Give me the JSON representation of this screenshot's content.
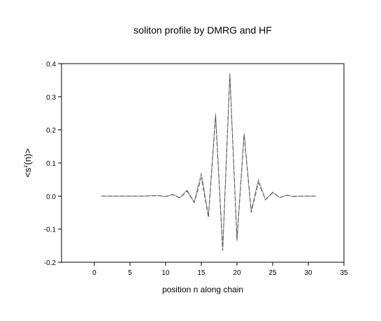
{
  "chart_data": {
    "type": "line",
    "title": "soliton profile by DMRG and HF",
    "xlabel": "position n along chain",
    "ylabel": {
      "base": "<s",
      "sup": "z",
      "rest": "(n)>"
    },
    "x": [
      1,
      2,
      3,
      4,
      5,
      6,
      7,
      8,
      9,
      10,
      11,
      12,
      13,
      14,
      15,
      16,
      17,
      18,
      19,
      20,
      21,
      22,
      23,
      24,
      25,
      26,
      27,
      28,
      29,
      30,
      31
    ],
    "series": [
      {
        "color": "#888888",
        "dash": false,
        "values": [
          0,
          0,
          0,
          0,
          0,
          0,
          0,
          0.001,
          0.002,
          -0.002,
          0.005,
          -0.005,
          0.018,
          -0.018,
          0.07,
          -0.06,
          0.25,
          -0.16,
          0.365,
          -0.13,
          0.19,
          -0.045,
          0.05,
          -0.012,
          0.012,
          -0.005,
          0.003,
          -0.002,
          0,
          0,
          0
        ]
      },
      {
        "color": "#555555",
        "dash": true,
        "values": [
          0,
          0,
          0,
          0,
          0,
          0,
          0,
          0.001,
          0.001,
          -0.001,
          0.004,
          -0.006,
          0.015,
          -0.02,
          0.055,
          -0.065,
          0.24,
          -0.165,
          0.37,
          -0.135,
          0.185,
          -0.05,
          0.04,
          -0.01,
          0.01,
          -0.004,
          0.002,
          -0.001,
          0,
          0,
          0
        ]
      }
    ],
    "xlim": [
      -4.6,
      35
    ],
    "xticks": [
      0,
      5,
      10,
      15,
      20,
      25,
      30,
      35
    ],
    "ylim": [
      -0.2,
      0.4
    ],
    "yticks": [
      {
        "value": -0.2,
        "label": "-0.2"
      },
      {
        "value": -0.1,
        "label": "-0.1"
      },
      {
        "value": 0,
        "label": "0.0"
      },
      0.1,
      0.2,
      0.3,
      0.4
    ]
  }
}
